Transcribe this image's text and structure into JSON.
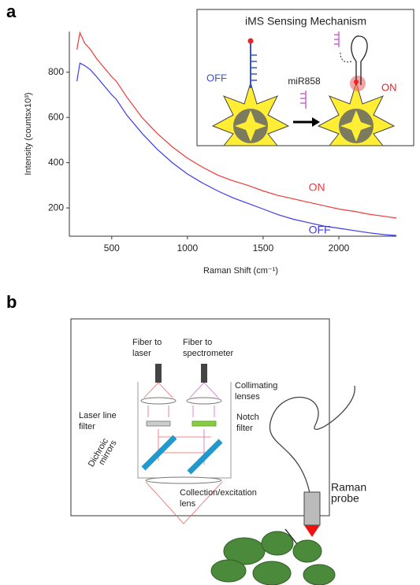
{
  "chart_data": {
    "type": "line",
    "xlabel": "Raman Shift (cm⁻¹)",
    "ylabel": "Intensity (countsx10³)",
    "x": [
      270,
      290,
      320,
      360,
      400,
      450,
      500,
      530,
      600,
      700,
      800,
      900,
      1000,
      1100,
      1200,
      1300,
      1400,
      1500,
      1600,
      1700,
      1800,
      1900,
      2000,
      2100,
      2200,
      2300,
      2380
    ],
    "series": [
      {
        "name": "ON",
        "color": "#ee3b3b",
        "values": [
          900,
          975,
          930,
          900,
          860,
          820,
          780,
          760,
          690,
          600,
          530,
          470,
          420,
          380,
          345,
          320,
          300,
          275,
          255,
          240,
          225,
          210,
          195,
          185,
          172,
          163,
          155
        ]
      },
      {
        "name": "OFF",
        "color": "#3b3bee",
        "values": [
          760,
          840,
          830,
          810,
          780,
          740,
          700,
          680,
          610,
          530,
          460,
          400,
          350,
          310,
          275,
          245,
          220,
          195,
          170,
          150,
          135,
          120,
          110,
          100,
          90,
          82,
          78
        ]
      }
    ],
    "xlim": [
      220,
      2380
    ],
    "ylim": [
      75,
      980
    ],
    "xticks": [
      500,
      1000,
      1500,
      2000
    ],
    "yticks": [
      200,
      400,
      600,
      800
    ]
  },
  "panel_labels": [
    "a",
    "b"
  ],
  "inset": {
    "title": "iMS Sensing Mechanism",
    "off_label": "OFF",
    "target": "miR858",
    "on_label": "ON"
  },
  "diagram": {
    "labels": [
      {
        "lines": [
          "Fiber to",
          "laser"
        ]
      },
      {
        "lines": [
          "Fiber to",
          "spectrometer"
        ]
      },
      {
        "lines": [
          "Collimating",
          "lenses"
        ]
      },
      {
        "lines": [
          "Laser line",
          "filter"
        ]
      },
      {
        "lines": [
          "Notch",
          "filter"
        ]
      },
      {
        "lines": [
          "Dichroic",
          "mirrors"
        ]
      },
      {
        "lines": [
          "Collection/excitation",
          "lens"
        ]
      },
      {
        "lines": [
          "Raman",
          "probe"
        ]
      }
    ]
  }
}
